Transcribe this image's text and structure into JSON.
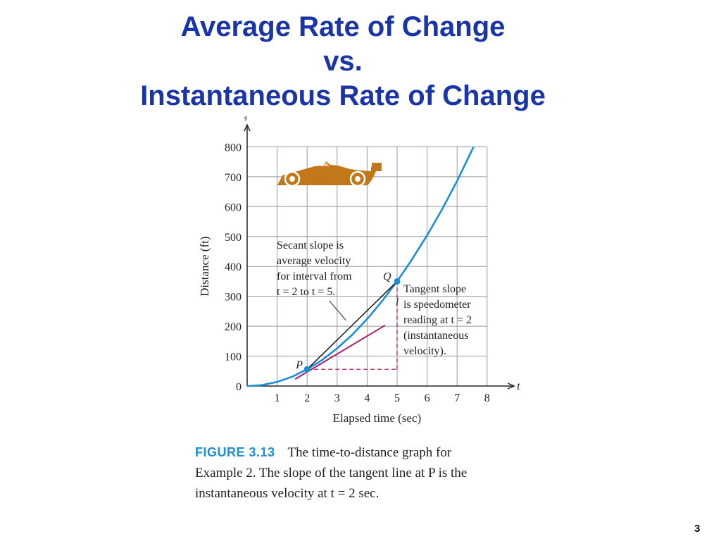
{
  "slide": {
    "title_lines": [
      "Average Rate of Change",
      "vs.",
      "Instantaneous Rate of Change"
    ],
    "page_number": "3"
  },
  "chart_data": {
    "type": "line",
    "x_axis": {
      "symbol": "t",
      "label": "Elapsed time (sec)",
      "ticks": [
        1,
        2,
        3,
        4,
        5,
        6,
        7,
        8
      ],
      "range": [
        0,
        8.9
      ]
    },
    "y_axis": {
      "symbol": "s",
      "label": "Distance (ft)",
      "ticks": [
        0,
        100,
        200,
        300,
        400,
        500,
        600,
        700,
        800
      ],
      "range": [
        0,
        850
      ]
    },
    "grid": true,
    "curve": {
      "points": [
        [
          0,
          0
        ],
        [
          0.5,
          3
        ],
        [
          1,
          14
        ],
        [
          1.5,
          31
        ],
        [
          2,
          56
        ],
        [
          2.5,
          87
        ],
        [
          3,
          126
        ],
        [
          3.5,
          171
        ],
        [
          4,
          224
        ],
        [
          4.5,
          284
        ],
        [
          5,
          350
        ],
        [
          5.5,
          424
        ],
        [
          6,
          504
        ],
        [
          6.5,
          591
        ],
        [
          7,
          686
        ],
        [
          7.55,
          800
        ]
      ],
      "color": "#1a8fd6"
    },
    "secant": {
      "from": [
        2,
        56
      ],
      "to": [
        5,
        350
      ],
      "color": "#111111"
    },
    "tangent": {
      "from": [
        1.6,
        23
      ],
      "to": [
        4.6,
        203
      ],
      "color": "#b0186c"
    },
    "guides": {
      "horizontal_from": [
        2,
        56
      ],
      "to_x": 5,
      "vertical_at_x": 5,
      "to_y": 350,
      "color": "#b0186c"
    },
    "points": [
      {
        "name": "P",
        "x": 2,
        "y": 56
      },
      {
        "name": "Q",
        "x": 5,
        "y": 350
      }
    ],
    "annotations": [
      {
        "lines": [
          "Secant slope is",
          "average velocity",
          "for interval from",
          "t = 2 to t = 5."
        ],
        "leader_from": [
          4.15,
          285
        ],
        "leader_to": [
          4.7,
          220
        ]
      },
      {
        "lines": [
          "Tangent slope",
          "is speedometer",
          "reading at t = 2",
          "(instantaneous",
          "velocity)."
        ],
        "leader_from": [
          5.15,
          295
        ],
        "leader_to": [
          5.1,
          268
        ]
      }
    ],
    "colors": {
      "axis": "#222222",
      "grid": "#9a9a9a",
      "car": "#c27818"
    }
  },
  "caption": {
    "figure_label": "FIGURE 3.13",
    "lines": [
      "The time-to-distance graph for",
      "Example 2. The slope of the tangent line at P is the",
      "instantaneous velocity at t = 2 sec."
    ]
  }
}
